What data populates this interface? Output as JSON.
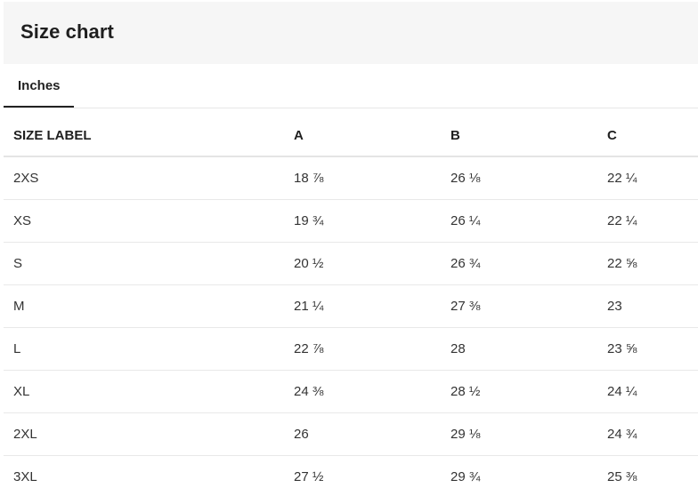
{
  "header": {
    "title": "Size chart"
  },
  "tabs": [
    {
      "label": "Inches",
      "active": true
    }
  ],
  "table": {
    "columns": [
      "SIZE LABEL",
      "A",
      "B",
      "C"
    ],
    "rows": [
      [
        "2XS",
        "18 ⅞",
        "26 ⅛",
        "22 ¼"
      ],
      [
        "XS",
        "19 ¾",
        "26 ¼",
        "22 ¼"
      ],
      [
        "S",
        "20 ½",
        "26 ¾",
        "22 ⅝"
      ],
      [
        "M",
        "21 ¼",
        "27 ⅜",
        "23"
      ],
      [
        "L",
        "22 ⅞",
        "28",
        "23 ⅝"
      ],
      [
        "XL",
        "24 ⅜",
        "28 ½",
        "24 ¼"
      ],
      [
        "2XL",
        "26",
        "29 ⅛",
        "24 ¾"
      ],
      [
        "3XL",
        "27 ½",
        "29 ¾",
        "25 ⅜"
      ]
    ]
  }
}
